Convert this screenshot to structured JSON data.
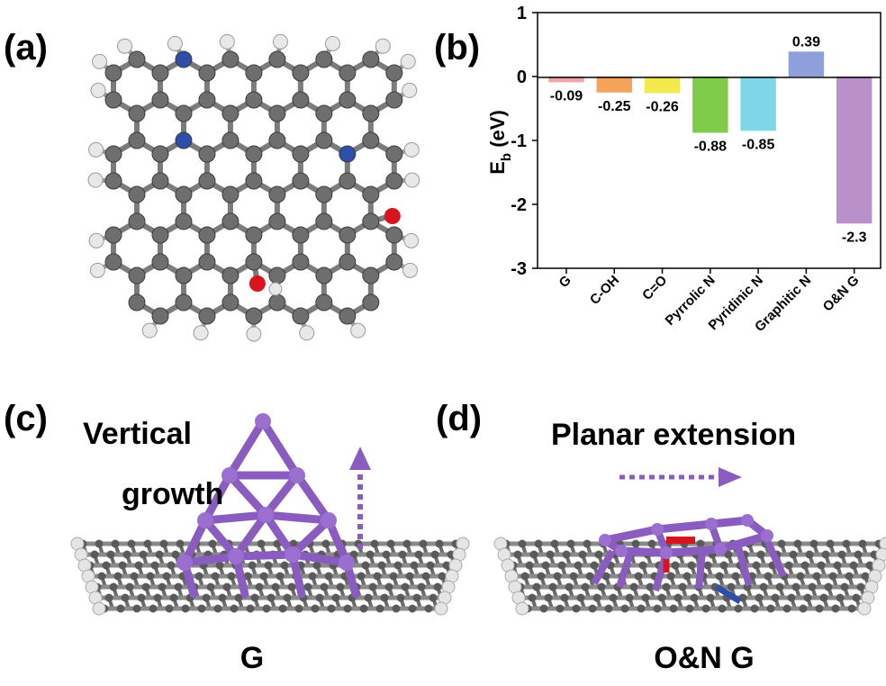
{
  "panels": {
    "a": {
      "label": "(a)"
    },
    "b": {
      "label": "(b)"
    },
    "c": {
      "label": "(c)",
      "caption_line1": "Vertical",
      "caption_line2": "growth",
      "substrate": "G"
    },
    "d": {
      "label": "(d)",
      "caption": "Planar extension",
      "substrate": "O&N G"
    }
  },
  "colors": {
    "carbon": "#6e6e6e",
    "hydrogen": "#e8e8e8",
    "nitrogen": "#2f4ea8",
    "oxygen": "#d8141e",
    "cluster": "#8a5cc0",
    "arrow": "#8a5cc0"
  },
  "chart_data": {
    "type": "bar",
    "categories": [
      "G",
      "C-OH",
      "C=O",
      "Pyrrolic N",
      "Pyridinic N",
      "Graphitic N",
      "O&N G"
    ],
    "values": [
      -0.09,
      -0.25,
      -0.26,
      -0.88,
      -0.85,
      0.39,
      -2.3
    ],
    "value_labels": [
      "-0.09",
      "-0.25",
      "-0.26",
      "-0.88",
      "-0.85",
      "0.39",
      "-2.3"
    ],
    "colors": [
      "#f4a3a8",
      "#f5a25a",
      "#f2ea4b",
      "#7fcc4b",
      "#7fd6e6",
      "#8e9fd9",
      "#b990c9"
    ],
    "ylabel_main": "E",
    "ylabel_sub": "b",
    "ylabel_unit": " (eV)",
    "ylim": [
      -3,
      1
    ],
    "yticks": [
      "1",
      "0",
      "-1",
      "-2",
      "-3"
    ]
  }
}
